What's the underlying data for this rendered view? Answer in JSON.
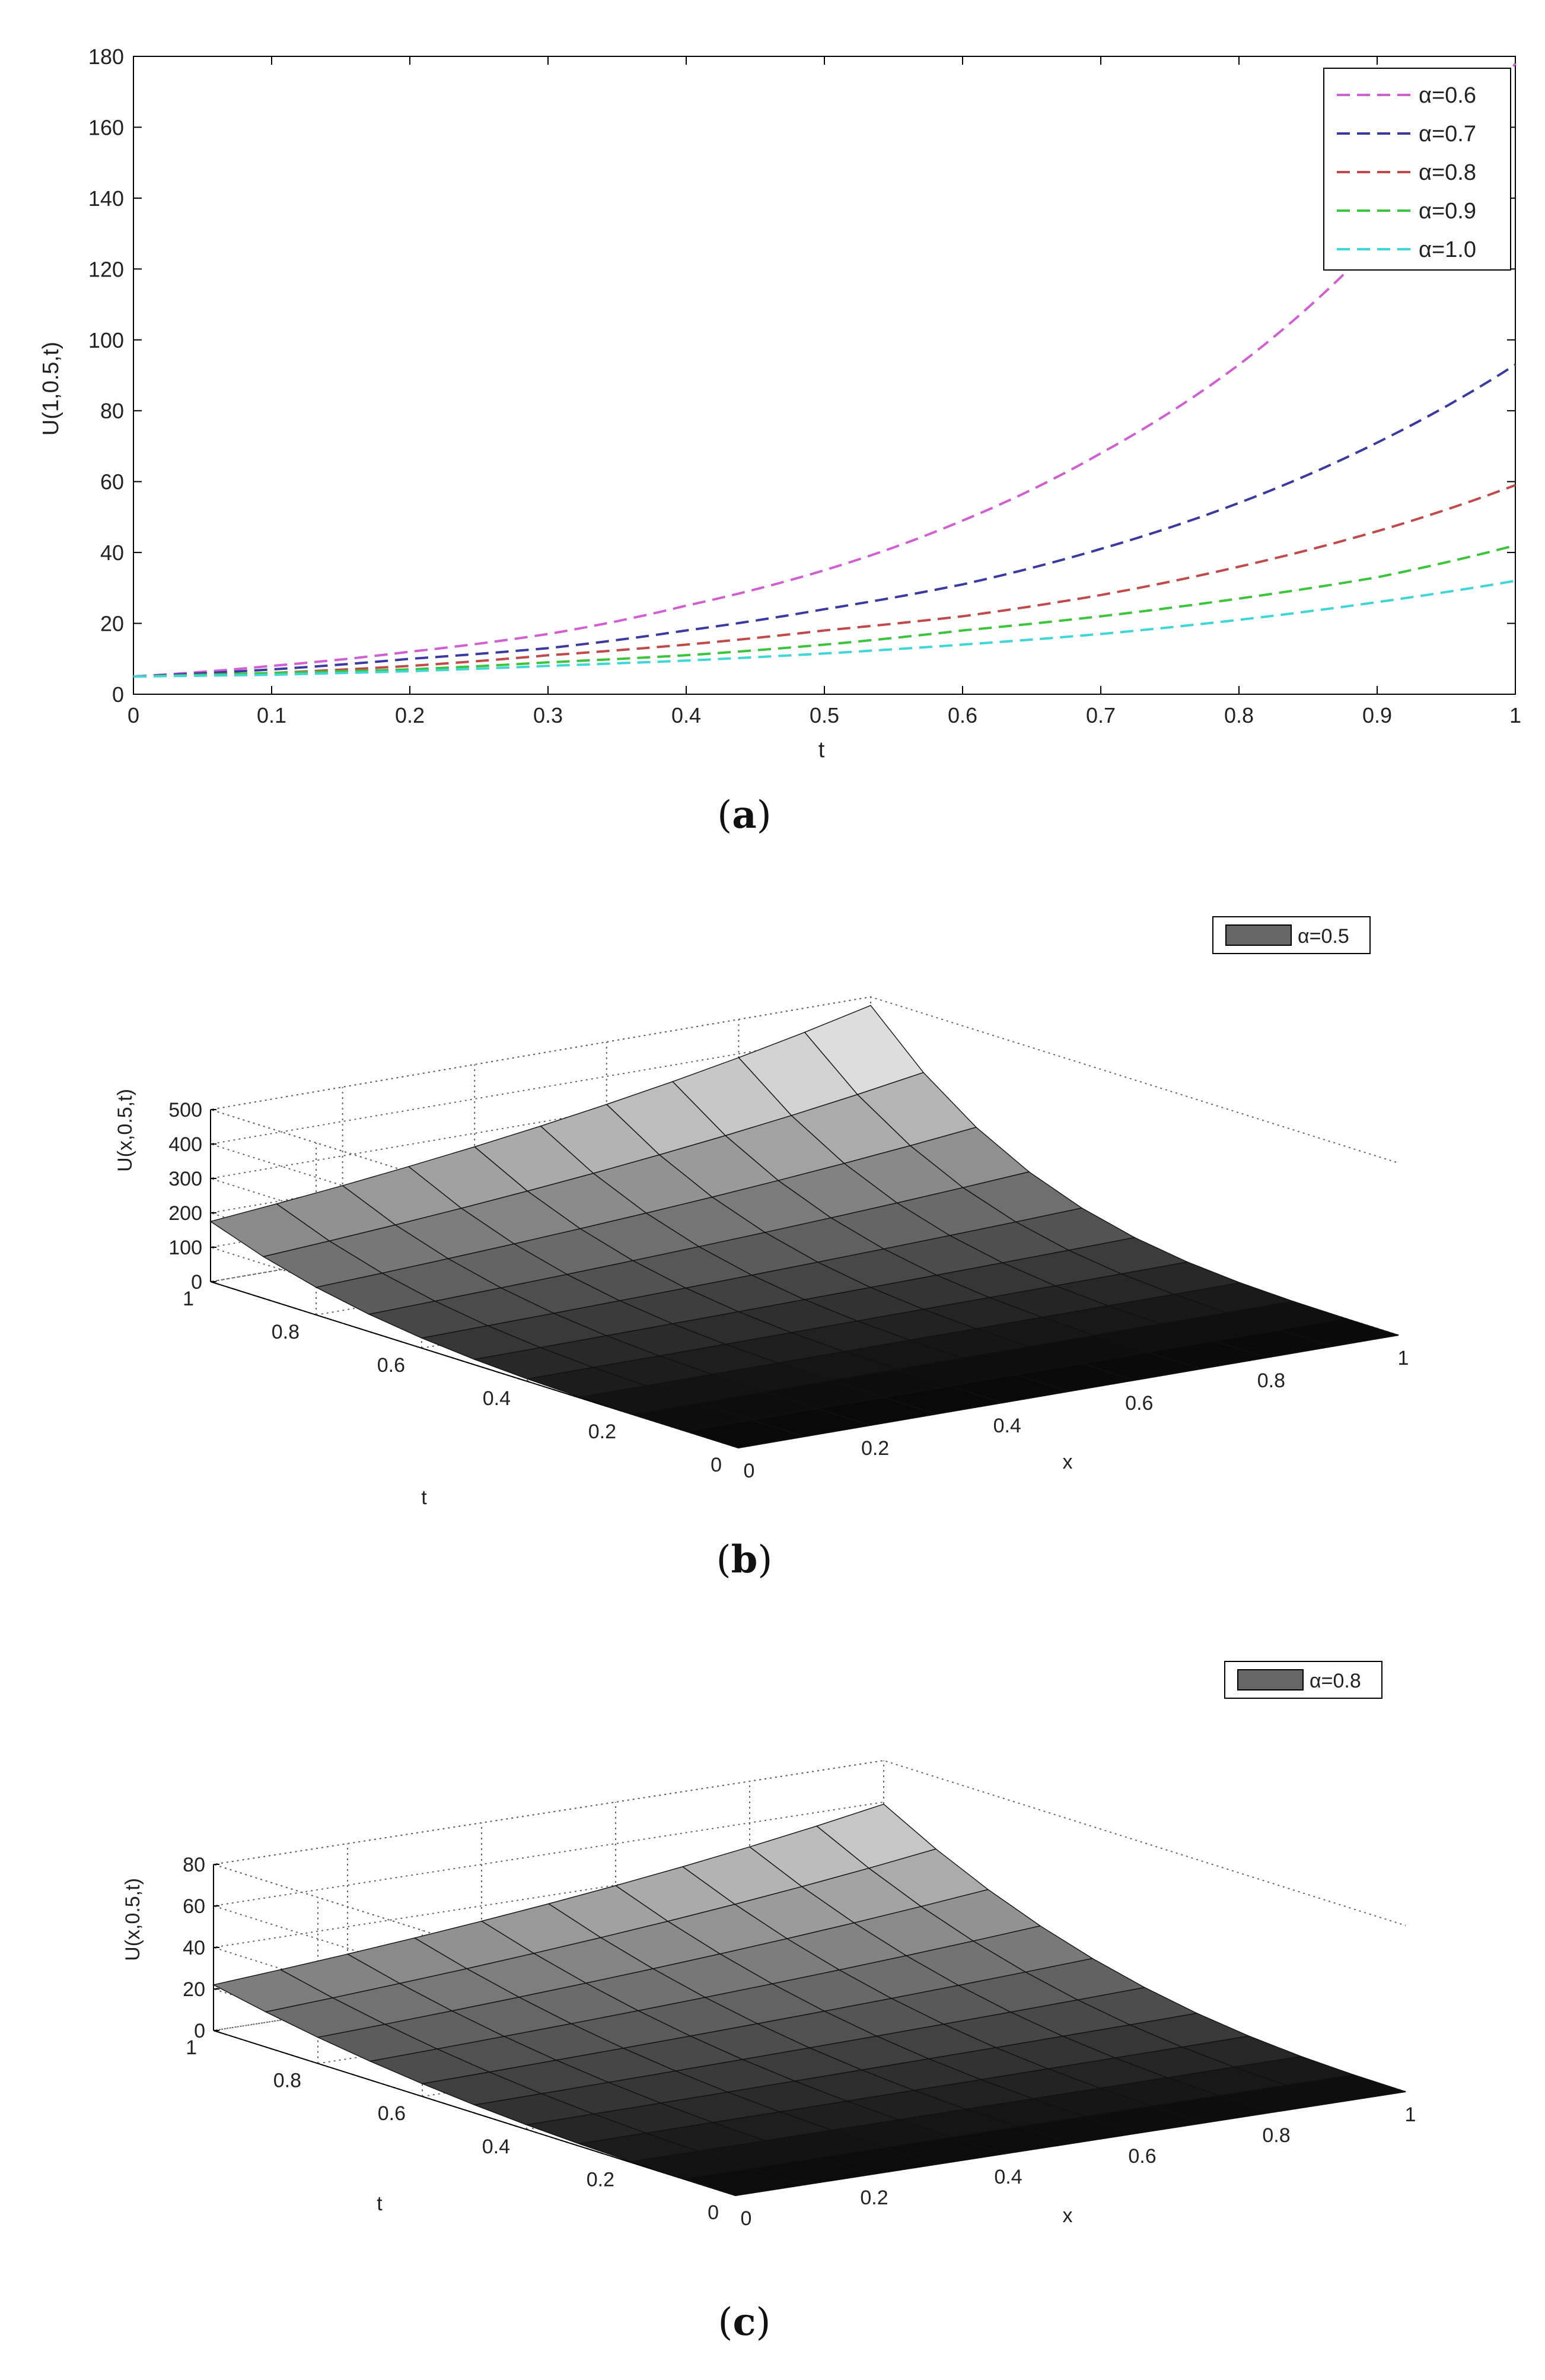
{
  "chart_data": [
    {
      "panel_label": "(a)",
      "panel_label_parts": {
        "open": "(",
        "letter": "a",
        "close": ")"
      },
      "type": "line",
      "title": "",
      "xlabel": "t",
      "ylabel": "U(1,0.5,t)",
      "xlim": [
        0,
        1
      ],
      "ylim": [
        0,
        180
      ],
      "x_ticks": [
        "0",
        "0.1",
        "0.2",
        "0.3",
        "0.4",
        "0.5",
        "0.6",
        "0.7",
        "0.8",
        "0.9",
        "1"
      ],
      "y_ticks": [
        "0",
        "20",
        "40",
        "60",
        "80",
        "100",
        "120",
        "140",
        "160",
        "180"
      ],
      "grid": false,
      "legend": "top-right",
      "line_style": "dashed",
      "x": [
        0,
        0.1,
        0.2,
        0.3,
        0.4,
        0.5,
        0.6,
        0.7,
        0.8,
        0.9,
        1.0
      ],
      "series": [
        {
          "name": "α=0.6",
          "color": "#d25fd2",
          "values": [
            5,
            8,
            12,
            17,
            25,
            35,
            49,
            68,
            93,
            128,
            178
          ]
        },
        {
          "name": "α=0.7",
          "color": "#3a3aa0",
          "values": [
            5,
            7,
            10,
            13,
            18,
            24,
            31,
            41,
            54,
            71,
            93
          ]
        },
        {
          "name": "α=0.8",
          "color": "#c04a4a",
          "values": [
            5,
            6,
            8,
            11,
            14,
            18,
            22,
            28,
            36,
            46,
            59
          ]
        },
        {
          "name": "α=0.9",
          "color": "#3cc43c",
          "values": [
            5,
            6,
            7,
            9,
            11,
            14,
            18,
            22,
            27,
            33,
            42
          ]
        },
        {
          "name": "α=1.0",
          "color": "#3fd6d6",
          "values": [
            5,
            5.5,
            6.5,
            8,
            9.5,
            11.5,
            14,
            17,
            21,
            26,
            32
          ]
        }
      ]
    },
    {
      "panel_label": "(b)",
      "panel_label_parts": {
        "open": "(",
        "letter": "b",
        "close": ")"
      },
      "type": "surface",
      "xlabel": "x",
      "ylabel": "t",
      "zlabel": "U(x,0.5,t)",
      "xlim": [
        0,
        1
      ],
      "ylim": [
        0,
        1
      ],
      "zlim": [
        0,
        500
      ],
      "x_ticks": [
        "0",
        "0.2",
        "0.4",
        "0.6",
        "0.8",
        "1"
      ],
      "y_ticks": [
        "0",
        "0.2",
        "0.4",
        "0.6",
        "0.8",
        "1"
      ],
      "z_ticks": [
        "0",
        "100",
        "200",
        "300",
        "400",
        "500"
      ],
      "grid": true,
      "legend": "top-right",
      "legend_entries": [
        "α=0.5"
      ],
      "surface": {
        "t_exponent": 3.5,
        "value_at_x0_t1": 175,
        "value_at_x1_t1": 475
      }
    },
    {
      "panel_label": "(c)",
      "panel_label_parts": {
        "open": "(",
        "letter": "c",
        "close": ")"
      },
      "type": "surface",
      "xlabel": "x",
      "ylabel": "t",
      "zlabel": "U(x,0.5,t)",
      "xlim": [
        0,
        1
      ],
      "ylim": [
        0,
        1
      ],
      "zlim": [
        0,
        80
      ],
      "x_ticks": [
        "0",
        "0.2",
        "0.4",
        "0.6",
        "0.8",
        "1"
      ],
      "y_ticks": [
        "0",
        "0.2",
        "0.4",
        "0.6",
        "0.8",
        "1"
      ],
      "z_ticks": [
        "0",
        "20",
        "40",
        "60",
        "80"
      ],
      "grid": true,
      "legend": "top-right",
      "legend_entries": [
        "α=0.8"
      ],
      "surface": {
        "t_exponent": 2.5,
        "value_at_x0_t1": 22,
        "value_at_x1_t1": 59
      }
    }
  ]
}
